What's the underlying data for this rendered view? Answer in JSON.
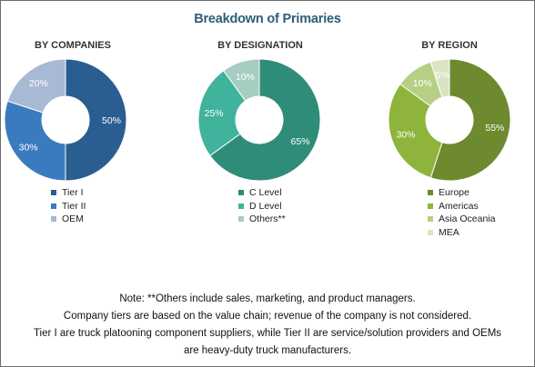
{
  "title": "Breakdown of Primaries",
  "chart_data": [
    {
      "type": "pie",
      "title": "BY COMPANIES",
      "categories": [
        "Tier I",
        "Tier II",
        "OEM"
      ],
      "values": [
        50,
        30,
        20
      ],
      "labels": [
        "50%",
        "30%",
        "20%"
      ],
      "colors": [
        "#2a5e91",
        "#3a7bc0",
        "#a8b9d4"
      ]
    },
    {
      "type": "pie",
      "title": "BY DESIGNATION",
      "categories": [
        "C Level",
        "D Level",
        "Others**"
      ],
      "values": [
        65,
        25,
        10
      ],
      "labels": [
        "65%",
        "25%",
        "10%"
      ],
      "colors": [
        "#2f8c78",
        "#3fb39c",
        "#a6cdc2"
      ]
    },
    {
      "type": "pie",
      "title": "BY REGION",
      "categories": [
        "Europe",
        "Americas",
        "Asia Oceania",
        "MEA"
      ],
      "values": [
        55,
        30,
        10,
        5
      ],
      "labels": [
        "55%",
        "30%",
        "10%",
        "5%"
      ],
      "colors": [
        "#6d8a2e",
        "#8fb43c",
        "#b6cf84",
        "#d9e4c3"
      ]
    }
  ],
  "notes": [
    "Note: **Others include sales, marketing, and product managers.",
    "Company tiers are based on the value chain; revenue of the company is not considered.",
    "Tier I are truck platooning component suppliers, while Tier II are service/solution providers and OEMs",
    "are heavy-duty truck manufacturers."
  ]
}
